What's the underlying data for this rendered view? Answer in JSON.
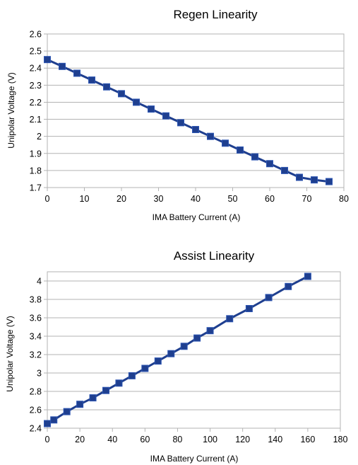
{
  "chart_data": [
    {
      "type": "line",
      "title": "Regen Linearity",
      "xlabel": "IMA Battery Current (A)",
      "ylabel": "Unipolar Voltage (V)",
      "xlim": [
        0,
        80
      ],
      "ylim": [
        1.7,
        2.6
      ],
      "x_ticks": [
        "0",
        "10",
        "20",
        "30",
        "40",
        "50",
        "60",
        "70",
        "80"
      ],
      "y_ticks": [
        "1.7",
        "1.8",
        "1.9",
        "2",
        "2.1",
        "2.2",
        "2.3",
        "2.4",
        "2.5",
        "2.6"
      ],
      "grid": true,
      "marker": "square",
      "color": "#1f3f8f",
      "series": [
        {
          "x": [
            0,
            4,
            8,
            12,
            16,
            20,
            24,
            28,
            32,
            36,
            40,
            44,
            48,
            52,
            56,
            60,
            64,
            68,
            72,
            76
          ],
          "values": [
            2.45,
            2.41,
            2.37,
            2.33,
            2.29,
            2.25,
            2.2,
            2.16,
            2.12,
            2.08,
            2.04,
            2.0,
            1.96,
            1.92,
            1.88,
            1.84,
            1.8,
            1.76,
            1.745,
            1.735
          ]
        }
      ]
    },
    {
      "type": "line",
      "title": "Assist Linearity",
      "xlabel": "IMA Battery Current (A)",
      "ylabel": "Unipolar Voltage (V)",
      "xlim": [
        0,
        180
      ],
      "ylim": [
        2.4,
        4.1
      ],
      "x_ticks": [
        "0",
        "20",
        "40",
        "60",
        "80",
        "100",
        "120",
        "140",
        "160",
        "180"
      ],
      "y_ticks": [
        "2.4",
        "2.6",
        "2.8",
        "3",
        "3.2",
        "3.4",
        "3.6",
        "3.8",
        "4"
      ],
      "grid": true,
      "marker": "square",
      "color": "#1f3f8f",
      "series": [
        {
          "x": [
            0,
            4,
            12,
            20,
            28,
            36,
            44,
            52,
            60,
            68,
            76,
            84,
            92,
            100,
            112,
            124,
            136,
            148,
            160
          ],
          "values": [
            2.45,
            2.49,
            2.58,
            2.66,
            2.73,
            2.81,
            2.89,
            2.97,
            3.05,
            3.13,
            3.21,
            3.29,
            3.38,
            3.46,
            3.59,
            3.7,
            3.82,
            3.94,
            4.05
          ]
        }
      ]
    }
  ]
}
